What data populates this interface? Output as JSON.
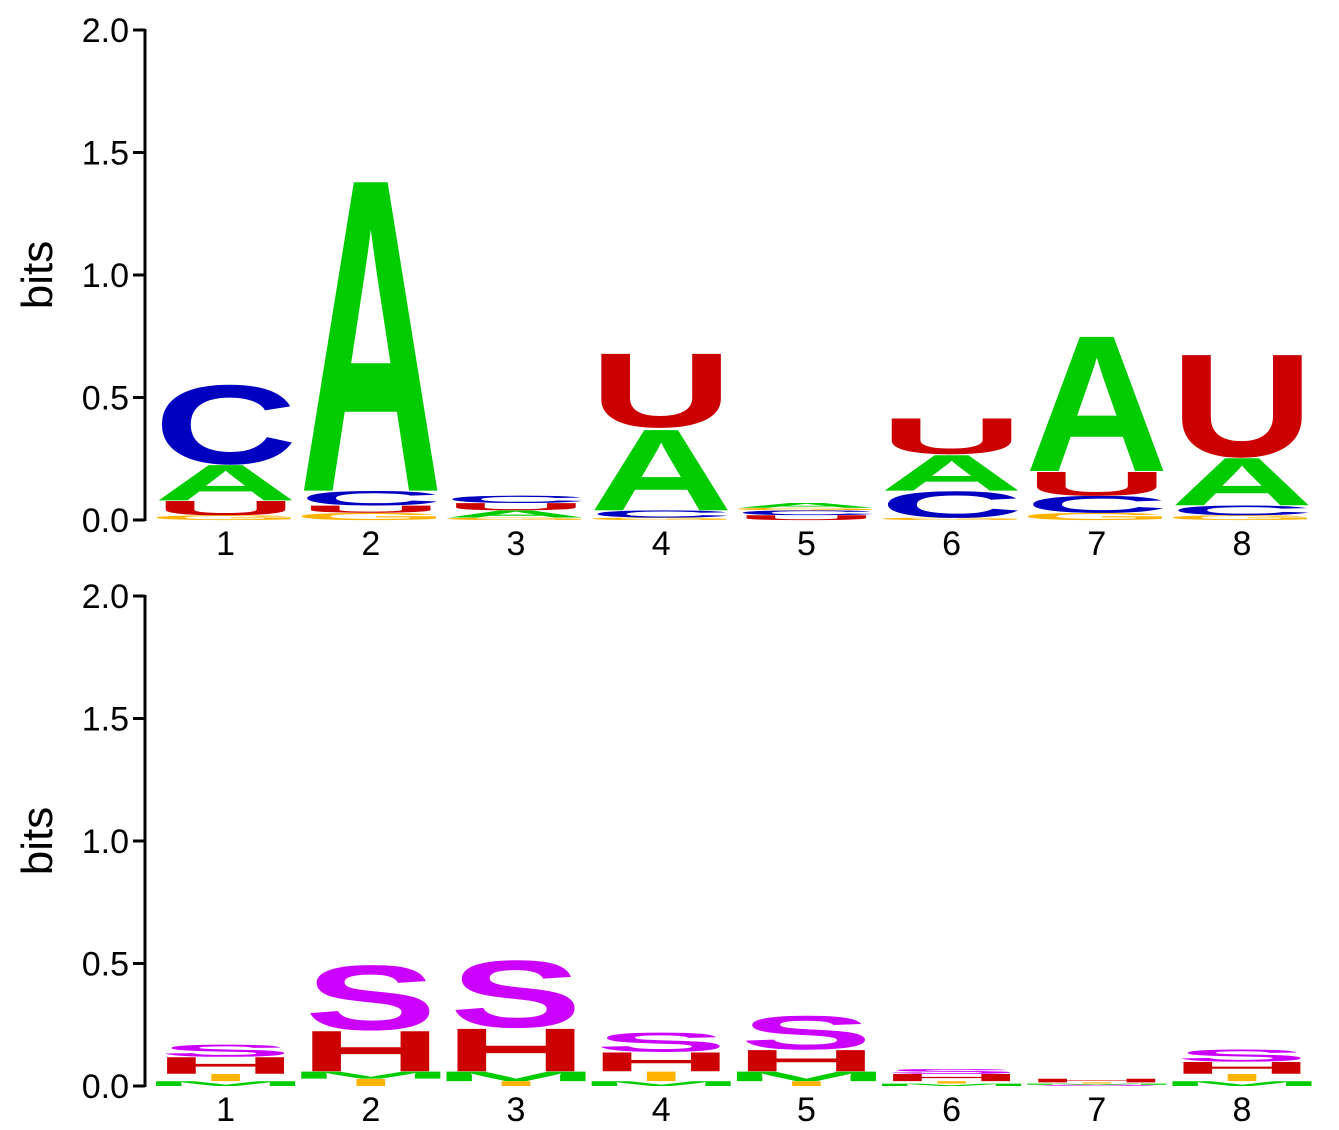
{
  "chart_data": [
    {
      "type": "sequence-logo",
      "ylabel": "bits",
      "ylim": [
        0,
        2.0
      ],
      "yticks": [
        "0.0",
        "0.5",
        "1.0",
        "1.5",
        "2.0"
      ],
      "positions": [
        "1",
        "2",
        "3",
        "4",
        "5",
        "6",
        "7",
        "8"
      ],
      "colors": {
        "A": "#00cc00",
        "C": "#0000c0",
        "G": "#ffb300",
        "U": "#cc0000"
      },
      "stacks": [
        [
          {
            "letter": "G",
            "height": 0.02
          },
          {
            "letter": "U",
            "height": 0.06
          },
          {
            "letter": "A",
            "height": 0.15
          },
          {
            "letter": "C",
            "height": 0.33
          }
        ],
        [
          {
            "letter": "G",
            "height": 0.03
          },
          {
            "letter": "U",
            "height": 0.03
          },
          {
            "letter": "C",
            "height": 0.06
          },
          {
            "letter": "A",
            "height": 1.31
          }
        ],
        [
          {
            "letter": "G",
            "height": 0.01
          },
          {
            "letter": "A",
            "height": 0.03
          },
          {
            "letter": "U",
            "height": 0.03
          },
          {
            "letter": "C",
            "height": 0.03
          }
        ],
        [
          {
            "letter": "G",
            "height": 0.01
          },
          {
            "letter": "C",
            "height": 0.03
          },
          {
            "letter": "A",
            "height": 0.34
          },
          {
            "letter": "U",
            "height": 0.31
          }
        ],
        [
          {
            "letter": "U",
            "height": 0.02
          },
          {
            "letter": "C",
            "height": 0.02
          },
          {
            "letter": "G",
            "height": 0.01
          },
          {
            "letter": "A",
            "height": 0.02
          }
        ],
        [
          {
            "letter": "G",
            "height": 0.01
          },
          {
            "letter": "C",
            "height": 0.11
          },
          {
            "letter": "A",
            "height": 0.15
          },
          {
            "letter": "U",
            "height": 0.15
          }
        ],
        [
          {
            "letter": "G",
            "height": 0.03
          },
          {
            "letter": "C",
            "height": 0.07
          },
          {
            "letter": "U",
            "height": 0.1
          },
          {
            "letter": "A",
            "height": 0.57
          }
        ],
        [
          {
            "letter": "G",
            "height": 0.02
          },
          {
            "letter": "C",
            "height": 0.04
          },
          {
            "letter": "A",
            "height": 0.2
          },
          {
            "letter": "U",
            "height": 0.43
          }
        ]
      ]
    },
    {
      "type": "sequence-logo",
      "ylabel": "bits",
      "ylim": [
        0,
        2.0
      ],
      "yticks": [
        "0.0",
        "0.5",
        "1.0",
        "1.5",
        "2.0"
      ],
      "positions": [
        "1",
        "2",
        "3",
        "4",
        "5",
        "6",
        "7",
        "8"
      ],
      "colors": {
        "H": "#cc0000",
        "S": "#cc00ff",
        "M": "#00cc00",
        "I": "#ffb300"
      },
      "stacks": [
        [
          {
            "letter": "M",
            "height": 0.02
          },
          {
            "letter": "I",
            "height": 0.03
          },
          {
            "letter": "H",
            "height": 0.07
          },
          {
            "letter": "S",
            "height": 0.05
          }
        ],
        [
          {
            "letter": "I",
            "height": 0.03
          },
          {
            "letter": "M",
            "height": 0.03
          },
          {
            "letter": "H",
            "height": 0.17
          },
          {
            "letter": "S",
            "height": 0.27
          }
        ],
        [
          {
            "letter": "I",
            "height": 0.02
          },
          {
            "letter": "M",
            "height": 0.04
          },
          {
            "letter": "H",
            "height": 0.18
          },
          {
            "letter": "S",
            "height": 0.28
          }
        ],
        [
          {
            "letter": "M",
            "height": 0.02
          },
          {
            "letter": "I",
            "height": 0.04
          },
          {
            "letter": "H",
            "height": 0.08
          },
          {
            "letter": "S",
            "height": 0.08
          }
        ],
        [
          {
            "letter": "I",
            "height": 0.02
          },
          {
            "letter": "M",
            "height": 0.04
          },
          {
            "letter": "H",
            "height": 0.09
          },
          {
            "letter": "S",
            "height": 0.14
          }
        ],
        [
          {
            "letter": "M",
            "height": 0.01
          },
          {
            "letter": "I",
            "height": 0.01
          },
          {
            "letter": "H",
            "height": 0.03
          },
          {
            "letter": "S",
            "height": 0.02
          }
        ],
        [
          {
            "letter": "S",
            "height": 0.005
          },
          {
            "letter": "M",
            "height": 0.005
          },
          {
            "letter": "I",
            "height": 0.005
          },
          {
            "letter": "H",
            "height": 0.015
          }
        ],
        [
          {
            "letter": "M",
            "height": 0.02
          },
          {
            "letter": "I",
            "height": 0.03
          },
          {
            "letter": "H",
            "height": 0.05
          },
          {
            "letter": "S",
            "height": 0.05
          }
        ]
      ]
    }
  ]
}
